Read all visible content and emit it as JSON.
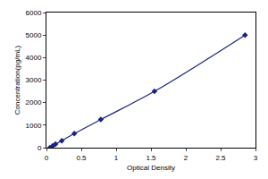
{
  "chart_data": {
    "type": "line",
    "x_label": "Optical Density",
    "y_label": "Concentration(pg/mL)",
    "x": [
      0.05,
      0.09,
      0.13,
      0.22,
      0.4,
      0.78,
      1.55,
      2.85
    ],
    "values": [
      0,
      78,
      156,
      312,
      625,
      1250,
      2500,
      5000
    ],
    "color": "#1a237e",
    "marker": "diamond",
    "line_style": "solid",
    "xlim": [
      0,
      3
    ],
    "xticks": [
      0,
      0.5,
      1,
      1.5,
      2,
      2.5,
      3
    ],
    "ylim": [
      0,
      6000
    ],
    "yticks": [
      0,
      1000,
      2000,
      3000,
      4000,
      5000,
      6000
    ],
    "grid": false
  }
}
